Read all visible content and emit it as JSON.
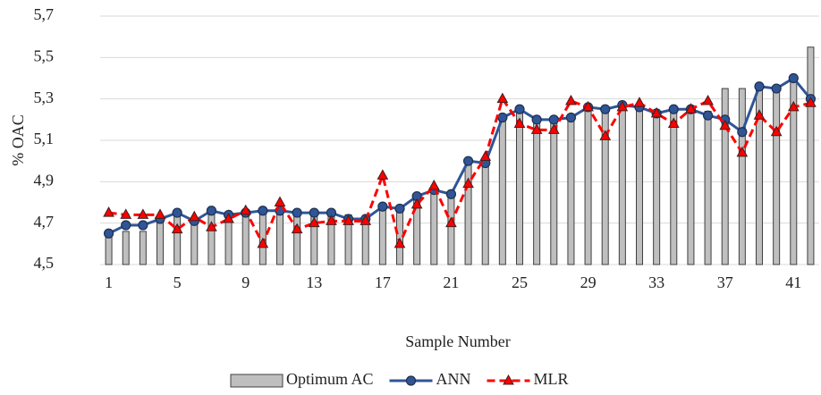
{
  "chart_data": {
    "type": "bar",
    "y_label": "% OAC",
    "x_label": "Sample Number",
    "categories": [
      "1",
      null,
      null,
      null,
      "5",
      null,
      null,
      null,
      "9",
      null,
      null,
      null,
      "13",
      null,
      null,
      null,
      "17",
      null,
      null,
      null,
      "21",
      null,
      null,
      null,
      "25",
      null,
      null,
      null,
      "29",
      null,
      null,
      null,
      "33",
      null,
      null,
      null,
      "37",
      null,
      null,
      null,
      "41",
      null
    ],
    "series": [
      {
        "name": "Optimum AC",
        "type": "bar",
        "color": "#bfbfbf",
        "values": [
          4.65,
          4.66,
          4.66,
          4.71,
          4.74,
          4.71,
          4.76,
          4.74,
          4.76,
          4.75,
          4.77,
          4.74,
          4.74,
          4.75,
          4.74,
          4.72,
          4.77,
          4.77,
          4.82,
          4.87,
          4.84,
          5.0,
          4.99,
          5.2,
          5.26,
          5.19,
          5.19,
          5.22,
          5.27,
          5.26,
          5.27,
          5.27,
          5.23,
          5.26,
          5.26,
          5.24,
          5.35,
          5.35,
          5.35,
          5.35,
          5.4,
          5.55
        ]
      },
      {
        "name": "ANN",
        "type": "line",
        "color": "#2f5597",
        "marker": "circle",
        "dashed": false,
        "values": [
          4.65,
          4.69,
          4.69,
          4.72,
          4.75,
          4.71,
          4.76,
          4.74,
          4.75,
          4.76,
          4.76,
          4.75,
          4.75,
          4.75,
          4.72,
          4.72,
          4.78,
          4.77,
          4.83,
          4.86,
          4.84,
          5.0,
          4.99,
          5.21,
          5.25,
          5.2,
          5.2,
          5.21,
          5.26,
          5.25,
          5.27,
          5.26,
          5.23,
          5.25,
          5.25,
          5.22,
          5.2,
          5.14,
          5.36,
          5.35,
          5.4,
          5.3
        ]
      },
      {
        "name": "MLR",
        "type": "line",
        "color": "#ff0000",
        "marker": "triangle",
        "dashed": true,
        "values": [
          4.75,
          4.74,
          4.74,
          4.74,
          4.67,
          4.73,
          4.68,
          4.72,
          4.76,
          4.6,
          4.8,
          4.67,
          4.7,
          4.71,
          4.71,
          4.71,
          4.93,
          4.6,
          4.79,
          4.88,
          4.7,
          4.89,
          5.02,
          5.3,
          5.18,
          5.15,
          5.15,
          5.29,
          5.26,
          5.12,
          5.26,
          5.28,
          5.23,
          5.18,
          5.25,
          5.29,
          5.17,
          5.04,
          5.22,
          5.14,
          5.26,
          5.28
        ]
      }
    ],
    "ylim": [
      4.5,
      5.7
    ],
    "yticks": [
      {
        "value": 4.5,
        "label": "4,5"
      },
      {
        "value": 4.7,
        "label": "4,7"
      },
      {
        "value": 4.9,
        "label": "4,9"
      },
      {
        "value": 5.1,
        "label": "5,1"
      },
      {
        "value": 5.3,
        "label": "5,3"
      },
      {
        "value": 5.5,
        "label": "5,5"
      },
      {
        "value": 5.7,
        "label": "5,7"
      }
    ],
    "grid": true,
    "legend": "bottom"
  }
}
